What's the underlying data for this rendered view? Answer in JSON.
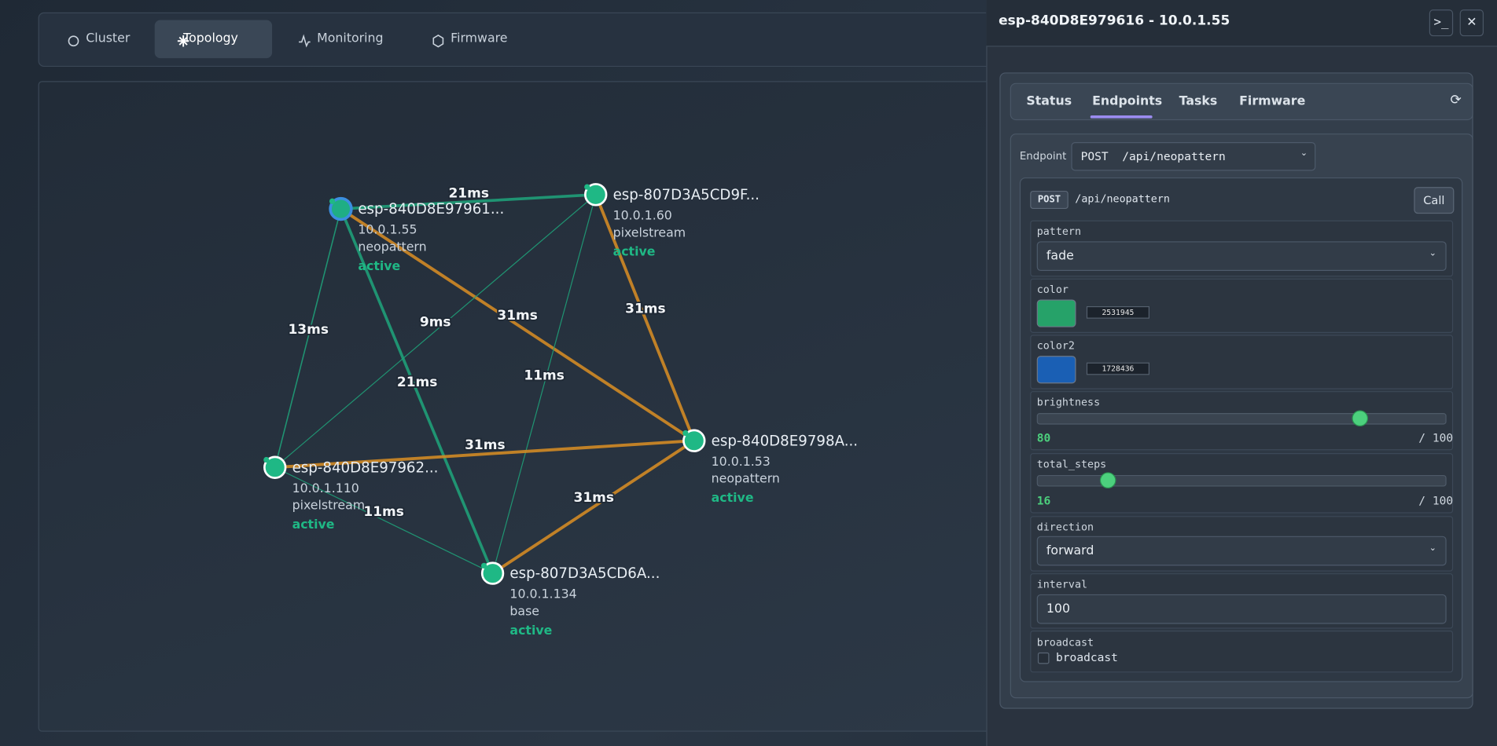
{
  "nav": {
    "tabs": [
      "Cluster",
      "Topology",
      "Monitoring",
      "Firmware"
    ]
  },
  "topology": {
    "nodes": [
      {
        "name": "esp-840D8E97961...",
        "ip": "10.0.1.55",
        "role": "neopattern",
        "status": "active"
      },
      {
        "name": "esp-807D3A5CD9F...",
        "ip": "10.0.1.60",
        "role": "pixelstream",
        "status": "active"
      },
      {
        "name": "esp-840D8E9798A...",
        "ip": "10.0.1.53",
        "role": "neopattern",
        "status": "active"
      },
      {
        "name": "esp-840D8E97962...",
        "ip": "10.0.1.110",
        "role": "pixelstream",
        "status": "active"
      },
      {
        "name": "esp-807D3A5CD6A...",
        "ip": "10.0.1.134",
        "role": "base",
        "status": "active"
      }
    ],
    "edges": [
      {
        "latency": "21ms"
      },
      {
        "latency": "13ms"
      },
      {
        "latency": "21ms"
      },
      {
        "latency": "31ms"
      },
      {
        "latency": "9ms"
      },
      {
        "latency": "11ms"
      },
      {
        "latency": "31ms"
      },
      {
        "latency": "31ms"
      },
      {
        "latency": "11ms"
      },
      {
        "latency": "31ms"
      }
    ]
  },
  "panel": {
    "title": "esp-840D8E979616 - 10.0.1.55",
    "tabs": [
      "Status",
      "Endpoints",
      "Tasks",
      "Firmware"
    ],
    "endpoint_label": "Endpoint",
    "endpoint_select": "POST  /api/neopattern",
    "card": {
      "method": "POST",
      "path": "/api/neopattern",
      "call": "Call",
      "fields": [
        {
          "label": "pattern",
          "value": "fade"
        },
        {
          "label": "color",
          "value": 2531945
        },
        {
          "label": "color2",
          "value": 1728436
        },
        {
          "label": "brightness",
          "value": 80,
          "max": 100,
          "max_label": "/ 100"
        },
        {
          "label": "total_steps",
          "value": 16,
          "max": 100,
          "max_label": "/ 100"
        },
        {
          "label": "direction",
          "value": "forward"
        },
        {
          "label": "interval",
          "value": "100"
        },
        {
          "label": "broadcast",
          "option": "broadcast"
        }
      ]
    }
  }
}
